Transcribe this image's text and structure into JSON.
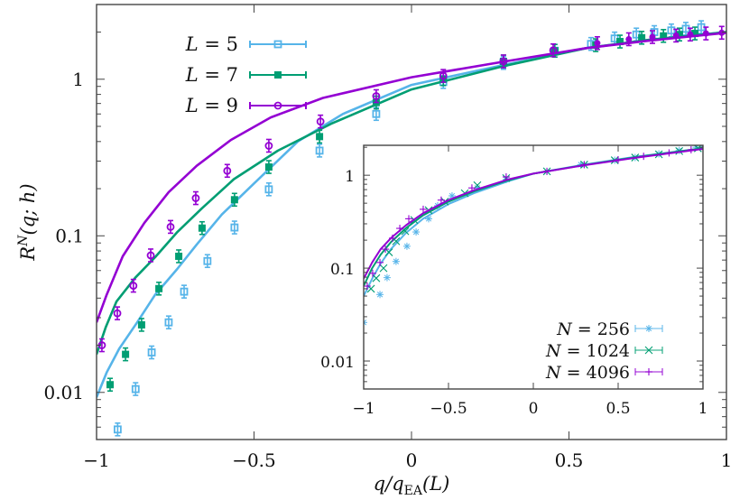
{
  "chart_data": [
    {
      "id": "main",
      "type": "scatter",
      "xlabel": "q/q_EA(L)",
      "ylabel": "R^N(q;h)",
      "xlim": [
        -1,
        1
      ],
      "ylim": [
        0.005,
        3.0
      ],
      "yscale": "log",
      "grid": false,
      "legend_position": "upper-left",
      "xticks": [
        -1,
        -0.5,
        0,
        0.5,
        1
      ],
      "xtick_labels": [
        "−1",
        "−0.5",
        "0",
        "0.5",
        "1"
      ],
      "yticks": [
        0.01,
        0.1,
        1
      ],
      "ytick_labels": [
        "0.01",
        "0.1",
        "1"
      ],
      "series": [
        {
          "name": "L = 5",
          "label_var": "L",
          "label_val": "5",
          "color": "#56b4e9",
          "marker": "open-square",
          "points": [
            {
              "x": -0.933,
              "y": 0.0058
            },
            {
              "x": -0.876,
              "y": 0.0105
            },
            {
              "x": -0.825,
              "y": 0.018
            },
            {
              "x": -0.771,
              "y": 0.028
            },
            {
              "x": -0.722,
              "y": 0.044
            },
            {
              "x": -0.648,
              "y": 0.069
            },
            {
              "x": -0.562,
              "y": 0.113
            },
            {
              "x": -0.453,
              "y": 0.198
            },
            {
              "x": -0.292,
              "y": 0.35
            },
            {
              "x": -0.112,
              "y": 0.6
            },
            {
              "x": 0.101,
              "y": 0.96
            },
            {
              "x": 0.292,
              "y": 1.27
            },
            {
              "x": 0.455,
              "y": 1.52
            },
            {
              "x": 0.57,
              "y": 1.68
            },
            {
              "x": 0.645,
              "y": 1.82
            },
            {
              "x": 0.714,
              "y": 1.93
            },
            {
              "x": 0.771,
              "y": 2.0
            },
            {
              "x": 0.825,
              "y": 2.05
            },
            {
              "x": 0.871,
              "y": 2.1
            },
            {
              "x": 0.92,
              "y": 2.15
            }
          ],
          "curve": [
            {
              "x": -1.0,
              "y": 0.0093
            },
            {
              "x": -0.968,
              "y": 0.0134
            },
            {
              "x": -0.928,
              "y": 0.019
            },
            {
              "x": -0.871,
              "y": 0.028
            },
            {
              "x": -0.814,
              "y": 0.042
            },
            {
              "x": -0.745,
              "y": 0.061
            },
            {
              "x": -0.682,
              "y": 0.088
            },
            {
              "x": -0.602,
              "y": 0.137
            },
            {
              "x": -0.501,
              "y": 0.215
            },
            {
              "x": -0.361,
              "y": 0.4
            },
            {
              "x": -0.218,
              "y": 0.6
            },
            {
              "x": 0.0,
              "y": 0.92
            },
            {
              "x": 0.298,
              "y": 1.24
            },
            {
              "x": 0.555,
              "y": 1.58
            },
            {
              "x": 0.75,
              "y": 1.78
            },
            {
              "x": 1.0,
              "y": 2.0
            }
          ]
        },
        {
          "name": "L = 7",
          "label_var": "L",
          "label_val": "7",
          "color": "#009e73",
          "marker": "filled-square",
          "points": [
            {
              "x": -0.957,
              "y": 0.0112
            },
            {
              "x": -0.908,
              "y": 0.0175
            },
            {
              "x": -0.857,
              "y": 0.027
            },
            {
              "x": -0.802,
              "y": 0.046
            },
            {
              "x": -0.739,
              "y": 0.074
            },
            {
              "x": -0.665,
              "y": 0.112
            },
            {
              "x": -0.562,
              "y": 0.17
            },
            {
              "x": -0.453,
              "y": 0.275
            },
            {
              "x": -0.292,
              "y": 0.43
            },
            {
              "x": -0.112,
              "y": 0.71
            },
            {
              "x": 0.101,
              "y": 1.0
            },
            {
              "x": 0.292,
              "y": 1.3
            },
            {
              "x": 0.455,
              "y": 1.52
            },
            {
              "x": 0.585,
              "y": 1.65
            },
            {
              "x": 0.662,
              "y": 1.74
            },
            {
              "x": 0.731,
              "y": 1.84
            },
            {
              "x": 0.8,
              "y": 1.89
            },
            {
              "x": 0.851,
              "y": 1.93
            },
            {
              "x": 0.9,
              "y": 1.96
            }
          ],
          "curve": [
            {
              "x": -1.0,
              "y": 0.0175
            },
            {
              "x": -0.971,
              "y": 0.026
            },
            {
              "x": -0.937,
              "y": 0.038
            },
            {
              "x": -0.877,
              "y": 0.054
            },
            {
              "x": -0.814,
              "y": 0.073
            },
            {
              "x": -0.745,
              "y": 0.105
            },
            {
              "x": -0.665,
              "y": 0.15
            },
            {
              "x": -0.564,
              "y": 0.23
            },
            {
              "x": -0.424,
              "y": 0.35
            },
            {
              "x": -0.255,
              "y": 0.52
            },
            {
              "x": 0.0,
              "y": 0.86
            },
            {
              "x": 0.298,
              "y": 1.22
            },
            {
              "x": 0.555,
              "y": 1.58
            },
            {
              "x": 0.75,
              "y": 1.78
            },
            {
              "x": 1.0,
              "y": 2.0
            }
          ]
        },
        {
          "name": "L = 9",
          "label_var": "L",
          "label_val": "9",
          "color": "#9400d3",
          "marker": "open-circle",
          "points": [
            {
              "x": -0.983,
              "y": 0.02
            },
            {
              "x": -0.934,
              "y": 0.032
            },
            {
              "x": -0.883,
              "y": 0.048
            },
            {
              "x": -0.828,
              "y": 0.075
            },
            {
              "x": -0.765,
              "y": 0.114
            },
            {
              "x": -0.685,
              "y": 0.174
            },
            {
              "x": -0.585,
              "y": 0.26
            },
            {
              "x": -0.453,
              "y": 0.376
            },
            {
              "x": -0.289,
              "y": 0.537
            },
            {
              "x": -0.112,
              "y": 0.78
            },
            {
              "x": 0.101,
              "y": 1.05
            },
            {
              "x": 0.292,
              "y": 1.3
            },
            {
              "x": 0.45,
              "y": 1.53
            },
            {
              "x": 0.59,
              "y": 1.7
            },
            {
              "x": 0.69,
              "y": 1.8
            },
            {
              "x": 0.765,
              "y": 1.86
            },
            {
              "x": 0.84,
              "y": 1.9
            },
            {
              "x": 0.885,
              "y": 1.93
            },
            {
              "x": 0.935,
              "y": 1.96
            },
            {
              "x": 0.985,
              "y": 1.98
            }
          ],
          "curve": [
            {
              "x": -1.0,
              "y": 0.028
            },
            {
              "x": -0.968,
              "y": 0.042
            },
            {
              "x": -0.917,
              "y": 0.074
            },
            {
              "x": -0.848,
              "y": 0.121
            },
            {
              "x": -0.771,
              "y": 0.19
            },
            {
              "x": -0.682,
              "y": 0.28
            },
            {
              "x": -0.573,
              "y": 0.41
            },
            {
              "x": -0.447,
              "y": 0.57
            },
            {
              "x": -0.281,
              "y": 0.76
            },
            {
              "x": 0.0,
              "y": 1.03
            },
            {
              "x": 0.298,
              "y": 1.3
            },
            {
              "x": 0.555,
              "y": 1.58
            },
            {
              "x": 0.75,
              "y": 1.76
            },
            {
              "x": 1.0,
              "y": 1.98
            }
          ]
        }
      ]
    },
    {
      "id": "inset",
      "type": "scatter",
      "xlabel": "",
      "ylabel": "",
      "xlim": [
        -1,
        1
      ],
      "ylim": [
        0.005,
        2.1
      ],
      "yscale": "log",
      "grid": false,
      "legend_position": "lower-right",
      "xticks": [
        -1,
        -0.5,
        0,
        0.5,
        1
      ],
      "xtick_labels": [
        "−1",
        "−0.5",
        "0",
        "0.5",
        "1"
      ],
      "yticks": [
        0.01,
        0.1,
        1
      ],
      "ytick_labels": [
        "0.01",
        "0.1",
        "1"
      ],
      "series": [
        {
          "name": "N = 256",
          "label_var": "N",
          "label_val": "256",
          "color": "#56b4e9",
          "marker": "star",
          "points": [
            {
              "x": -1.0,
              "y": 0.026
            },
            {
              "x": -0.904,
              "y": 0.052
            },
            {
              "x": -0.862,
              "y": 0.079
            },
            {
              "x": -0.809,
              "y": 0.118
            },
            {
              "x": -0.745,
              "y": 0.172
            },
            {
              "x": -0.691,
              "y": 0.245
            },
            {
              "x": -0.617,
              "y": 0.34
            },
            {
              "x": -0.564,
              "y": 0.47
            },
            {
              "x": -0.479,
              "y": 0.6
            },
            {
              "x": -0.33,
              "y": 0.73
            },
            {
              "x": -0.16,
              "y": 0.9
            },
            {
              "x": 0.08,
              "y": 1.1
            },
            {
              "x": 0.28,
              "y": 1.3
            },
            {
              "x": 0.48,
              "y": 1.45
            },
            {
              "x": 0.6,
              "y": 1.55
            },
            {
              "x": 0.74,
              "y": 1.7
            },
            {
              "x": 0.86,
              "y": 1.85
            },
            {
              "x": 0.96,
              "y": 2.0
            },
            {
              "x": 1.0,
              "y": 2.02
            }
          ],
          "curve": [
            {
              "x": -1.0,
              "y": 0.05
            },
            {
              "x": -0.95,
              "y": 0.077
            },
            {
              "x": -0.9,
              "y": 0.112
            },
            {
              "x": -0.84,
              "y": 0.16
            },
            {
              "x": -0.75,
              "y": 0.24
            },
            {
              "x": -0.65,
              "y": 0.34
            },
            {
              "x": -0.5,
              "y": 0.49
            },
            {
              "x": -0.35,
              "y": 0.64
            },
            {
              "x": -0.15,
              "y": 0.86
            },
            {
              "x": 0.0,
              "y": 1.04
            },
            {
              "x": 0.3,
              "y": 1.3
            },
            {
              "x": 0.6,
              "y": 1.58
            },
            {
              "x": 1.0,
              "y": 1.95
            }
          ]
        },
        {
          "name": "N = 1024",
          "label_var": "N",
          "label_val": "1024",
          "color": "#009e73",
          "marker": "x",
          "points": [
            {
              "x": -0.957,
              "y": 0.06
            },
            {
              "x": -0.926,
              "y": 0.078
            },
            {
              "x": -0.883,
              "y": 0.1
            },
            {
              "x": -0.851,
              "y": 0.148
            },
            {
              "x": -0.809,
              "y": 0.195
            },
            {
              "x": -0.755,
              "y": 0.25
            },
            {
              "x": -0.702,
              "y": 0.33
            },
            {
              "x": -0.617,
              "y": 0.42
            },
            {
              "x": -0.521,
              "y": 0.52
            },
            {
              "x": -0.404,
              "y": 0.64
            },
            {
              "x": -0.33,
              "y": 0.78
            },
            {
              "x": -0.16,
              "y": 0.93
            },
            {
              "x": 0.08,
              "y": 1.1
            },
            {
              "x": 0.3,
              "y": 1.3
            },
            {
              "x": 0.48,
              "y": 1.45
            },
            {
              "x": 0.6,
              "y": 1.55
            },
            {
              "x": 0.74,
              "y": 1.68
            },
            {
              "x": 0.86,
              "y": 1.82
            },
            {
              "x": 0.97,
              "y": 1.95
            }
          ],
          "curve": [
            {
              "x": -1.0,
              "y": 0.064
            },
            {
              "x": -0.95,
              "y": 0.1
            },
            {
              "x": -0.9,
              "y": 0.14
            },
            {
              "x": -0.84,
              "y": 0.19
            },
            {
              "x": -0.75,
              "y": 0.27
            },
            {
              "x": -0.65,
              "y": 0.37
            },
            {
              "x": -0.5,
              "y": 0.52
            },
            {
              "x": -0.35,
              "y": 0.67
            },
            {
              "x": -0.15,
              "y": 0.88
            },
            {
              "x": 0.0,
              "y": 1.04
            },
            {
              "x": 0.3,
              "y": 1.29
            },
            {
              "x": 0.6,
              "y": 1.56
            },
            {
              "x": 1.0,
              "y": 1.95
            }
          ]
        },
        {
          "name": "N = 4096",
          "label_var": "N",
          "label_val": "4096",
          "color": "#9400d3",
          "marker": "plus",
          "points": [
            {
              "x": -0.979,
              "y": 0.064
            },
            {
              "x": -0.947,
              "y": 0.088
            },
            {
              "x": -0.904,
              "y": 0.115
            },
            {
              "x": -0.872,
              "y": 0.16
            },
            {
              "x": -0.83,
              "y": 0.21
            },
            {
              "x": -0.787,
              "y": 0.268
            },
            {
              "x": -0.734,
              "y": 0.34
            },
            {
              "x": -0.649,
              "y": 0.43
            },
            {
              "x": -0.543,
              "y": 0.54
            },
            {
              "x": -0.362,
              "y": 0.73
            },
            {
              "x": -0.16,
              "y": 0.96
            },
            {
              "x": 0.08,
              "y": 1.1
            },
            {
              "x": 0.3,
              "y": 1.3
            },
            {
              "x": 0.5,
              "y": 1.47
            },
            {
              "x": 0.65,
              "y": 1.6
            },
            {
              "x": 0.8,
              "y": 1.74
            },
            {
              "x": 0.93,
              "y": 1.88
            }
          ],
          "curve": [
            {
              "x": -1.0,
              "y": 0.077
            },
            {
              "x": -0.95,
              "y": 0.115
            },
            {
              "x": -0.9,
              "y": 0.16
            },
            {
              "x": -0.84,
              "y": 0.21
            },
            {
              "x": -0.75,
              "y": 0.29
            },
            {
              "x": -0.65,
              "y": 0.39
            },
            {
              "x": -0.5,
              "y": 0.54
            },
            {
              "x": -0.35,
              "y": 0.69
            },
            {
              "x": -0.15,
              "y": 0.9
            },
            {
              "x": 0.0,
              "y": 1.04
            },
            {
              "x": 0.3,
              "y": 1.28
            },
            {
              "x": 0.6,
              "y": 1.54
            },
            {
              "x": 1.0,
              "y": 1.92
            }
          ]
        }
      ]
    }
  ],
  "labels": {
    "xlabel_main": "q/q",
    "xlabel_sub": "EA",
    "xlabel_tail": "(L)",
    "ylabel_main": "R",
    "ylabel_sup": "N",
    "ylabel_tail": "(q; h)"
  }
}
